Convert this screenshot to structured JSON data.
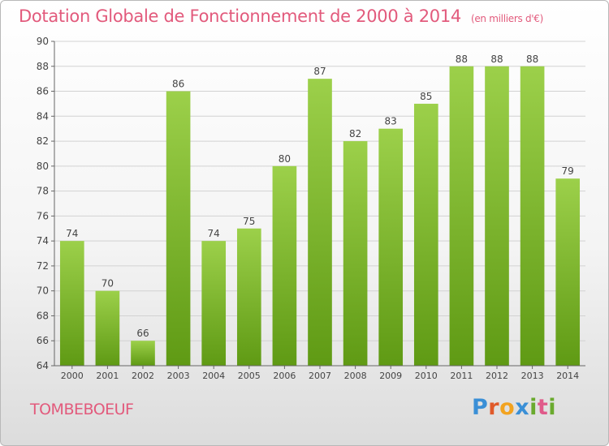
{
  "header": {
    "title": "Dotation Globale de Fonctionnement de 2000 à 2014",
    "unit": "(en milliers d'€)"
  },
  "footer": {
    "commune": "TOMBEBOEUF",
    "brand_letters": [
      "P",
      "r",
      "o",
      "x",
      "i",
      "t",
      "i"
    ]
  },
  "chart_data": {
    "type": "bar",
    "title": "Dotation Globale de Fonctionnement de 2000 à 2014",
    "subtitle": "(en milliers d'€)",
    "categories": [
      "2000",
      "2001",
      "2002",
      "2003",
      "2004",
      "2005",
      "2006",
      "2007",
      "2008",
      "2009",
      "2010",
      "2011",
      "2012",
      "2013",
      "2014"
    ],
    "values": [
      74,
      70,
      66,
      86,
      74,
      75,
      80,
      87,
      82,
      83,
      85,
      88,
      88,
      88,
      79
    ],
    "ylim": [
      64,
      90
    ],
    "yticks": [
      64,
      66,
      68,
      70,
      72,
      74,
      76,
      78,
      80,
      82,
      84,
      86,
      88,
      90
    ],
    "grid": true,
    "colors": {
      "bar_top": "#9cd04a",
      "bar_bottom": "#5f9a14",
      "grid": "#d2d2d2",
      "axis": "#666666",
      "title": "#e25a7c"
    }
  }
}
